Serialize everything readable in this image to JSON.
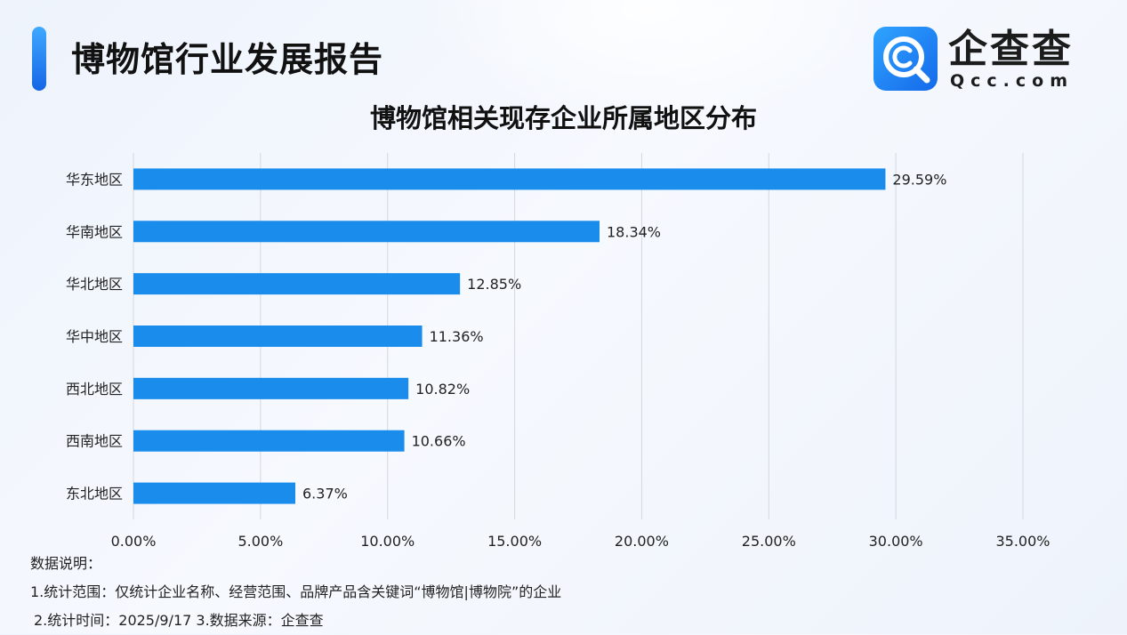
{
  "header": {
    "title": "博物馆行业发展报告"
  },
  "logo": {
    "name": "企查查",
    "domain": "Qcc.com",
    "brand_color": "#1a8cff"
  },
  "chart_data": {
    "type": "bar",
    "orientation": "horizontal",
    "title": "博物馆相关现存企业所属地区分布",
    "categories": [
      "华东地区",
      "华南地区",
      "华北地区",
      "华中地区",
      "西北地区",
      "西南地区",
      "东北地区"
    ],
    "values": [
      29.59,
      18.34,
      12.85,
      11.36,
      10.82,
      10.66,
      6.37
    ],
    "value_labels": [
      "29.59%",
      "18.34%",
      "12.85%",
      "11.36%",
      "10.82%",
      "10.66%",
      "6.37%"
    ],
    "xlim": [
      0,
      35
    ],
    "x_ticks": [
      0,
      5,
      10,
      15,
      20,
      25,
      30,
      35
    ],
    "x_tick_labels": [
      "0.00%",
      "5.00%",
      "10.00%",
      "15.00%",
      "20.00%",
      "25.00%",
      "30.00%",
      "35.00%"
    ],
    "grid": "vertical",
    "bar_color": "#1a8cec",
    "xlabel": "",
    "ylabel": ""
  },
  "notes": {
    "heading": "数据说明：",
    "line1": "1.统计范围：仅统计企业名称、经营范围、品牌产品含关键词“博物馆|博物院”的企业",
    "line2": "2.统计时间：2025/9/17  3.数据来源：企查查"
  }
}
